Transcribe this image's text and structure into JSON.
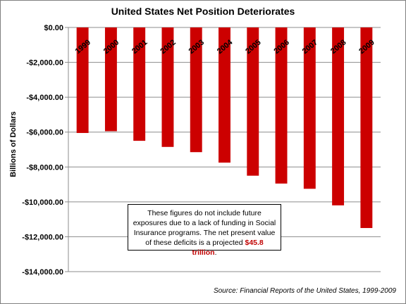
{
  "chart_data": {
    "type": "bar",
    "title": "United States Net Position Deteriorates",
    "xlabel": "",
    "ylabel": "Billions of Dollars",
    "categories": [
      "1999",
      "2000",
      "2001",
      "2002",
      "2003",
      "2004",
      "2005",
      "2006",
      "2007",
      "2008",
      "2009"
    ],
    "values": [
      -6050,
      -5950,
      -6500,
      -6850,
      -7150,
      -7750,
      -8500,
      -8950,
      -9250,
      -10200,
      -11500
    ],
    "ylim": [
      -14000,
      0
    ],
    "yticks": [
      0,
      -2000,
      -4000,
      -6000,
      -8000,
      -10000,
      -12000,
      -14000
    ],
    "ytick_labels": [
      "$0.00",
      "-$2,000.00",
      "-$4,000.00",
      "-$6,000.00",
      "-$8,000.00",
      "-$10,000.00",
      "-$12,000.00",
      "-$14,000.00"
    ],
    "grid": "horizontal",
    "bar_color": "#cc0000",
    "annotation": {
      "text": "These figures do not include future exposures due to a lack of funding in Social Insurance programs. The net present value of these deficits is a projected ",
      "highlight": "$45.8 trillion",
      "suffix": ".",
      "highlight_color": "#c00000"
    },
    "source": "Source: Financial Reports of the United States, 1999-2009"
  }
}
